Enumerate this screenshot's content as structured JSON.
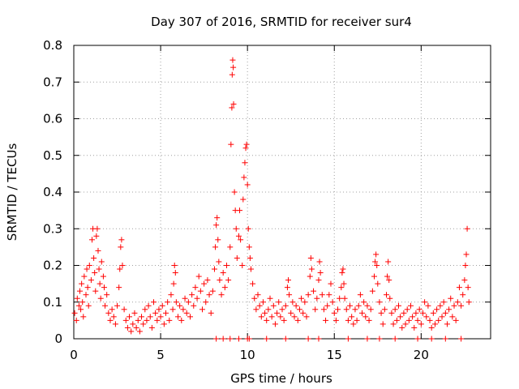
{
  "chart_data": {
    "type": "scatter",
    "title": "Day 307 of 2016, SRMTID for receiver sur4",
    "xlabel": "GPS time / hours",
    "ylabel": "SRMTID / TECUs",
    "xlim": [
      0,
      24
    ],
    "ylim": [
      0,
      0.8
    ],
    "x_ticks": [
      0,
      5,
      10,
      15,
      20
    ],
    "x_tick_labels": [
      "0",
      "5",
      "10",
      "15",
      "20"
    ],
    "y_ticks": [
      0,
      0.1,
      0.2,
      0.3,
      0.4,
      0.5,
      0.6,
      0.7,
      0.8
    ],
    "y_tick_labels": [
      "0",
      "0.1",
      "0.2",
      "0.3",
      "0.4",
      "0.5",
      "0.6",
      "0.7",
      "0.8"
    ],
    "grid": true,
    "marker": "+",
    "series": [
      {
        "name": "sur4",
        "color": "#ff0000",
        "points": [
          [
            0.05,
            0.07
          ],
          [
            0.15,
            0.05
          ],
          [
            0.2,
            0.11
          ],
          [
            0.3,
            0.09
          ],
          [
            0.35,
            0.13
          ],
          [
            0.4,
            0.08
          ],
          [
            0.45,
            0.15
          ],
          [
            0.5,
            0.1
          ],
          [
            0.55,
            0.06
          ],
          [
            0.6,
            0.17
          ],
          [
            0.7,
            0.12
          ],
          [
            0.75,
            0.19
          ],
          [
            0.8,
            0.14
          ],
          [
            0.85,
            0.09
          ],
          [
            0.9,
            0.2
          ],
          [
            1.0,
            0.16
          ],
          [
            1.05,
            0.27
          ],
          [
            1.1,
            0.3
          ],
          [
            1.15,
            0.22
          ],
          [
            1.2,
            0.18
          ],
          [
            1.25,
            0.13
          ],
          [
            1.3,
            0.28
          ],
          [
            1.35,
            0.3
          ],
          [
            1.4,
            0.24
          ],
          [
            1.45,
            0.19
          ],
          [
            1.5,
            0.15
          ],
          [
            1.55,
            0.11
          ],
          [
            1.6,
            0.21
          ],
          [
            1.7,
            0.17
          ],
          [
            1.75,
            0.14
          ],
          [
            1.8,
            0.09
          ],
          [
            1.9,
            0.12
          ],
          [
            2.0,
            0.07
          ],
          [
            2.1,
            0.05
          ],
          [
            2.2,
            0.08
          ],
          [
            2.3,
            0.06
          ],
          [
            2.4,
            0.04
          ],
          [
            2.5,
            0.09
          ],
          [
            2.6,
            0.14
          ],
          [
            2.65,
            0.19
          ],
          [
            2.7,
            0.25
          ],
          [
            2.75,
            0.27
          ],
          [
            2.8,
            0.2
          ],
          [
            2.9,
            0.08
          ],
          [
            3.0,
            0.05
          ],
          [
            3.1,
            0.03
          ],
          [
            3.2,
            0.06
          ],
          [
            3.3,
            0.02
          ],
          [
            3.4,
            0.04
          ],
          [
            3.5,
            0.07
          ],
          [
            3.6,
            0.03
          ],
          [
            3.7,
            0.05
          ],
          [
            3.8,
            0.02
          ],
          [
            3.9,
            0.06
          ],
          [
            4.0,
            0.04
          ],
          [
            4.1,
            0.08
          ],
          [
            4.2,
            0.05
          ],
          [
            4.3,
            0.09
          ],
          [
            4.4,
            0.06
          ],
          [
            4.5,
            0.03
          ],
          [
            4.6,
            0.1
          ],
          [
            4.7,
            0.07
          ],
          [
            4.8,
            0.05
          ],
          [
            4.9,
            0.08
          ],
          [
            5.0,
            0.06
          ],
          [
            5.1,
            0.09
          ],
          [
            5.2,
            0.04
          ],
          [
            5.3,
            0.07
          ],
          [
            5.4,
            0.1
          ],
          [
            5.5,
            0.05
          ],
          [
            5.6,
            0.12
          ],
          [
            5.7,
            0.08
          ],
          [
            5.75,
            0.15
          ],
          [
            5.8,
            0.2
          ],
          [
            5.85,
            0.18
          ],
          [
            5.9,
            0.1
          ],
          [
            6.0,
            0.06
          ],
          [
            6.1,
            0.09
          ],
          [
            6.2,
            0.05
          ],
          [
            6.3,
            0.08
          ],
          [
            6.4,
            0.11
          ],
          [
            6.5,
            0.07
          ],
          [
            6.6,
            0.1
          ],
          [
            6.7,
            0.06
          ],
          [
            6.8,
            0.12
          ],
          [
            6.9,
            0.09
          ],
          [
            7.0,
            0.14
          ],
          [
            7.1,
            0.11
          ],
          [
            7.2,
            0.17
          ],
          [
            7.3,
            0.13
          ],
          [
            7.4,
            0.08
          ],
          [
            7.5,
            0.15
          ],
          [
            7.6,
            0.1
          ],
          [
            7.7,
            0.16
          ],
          [
            7.8,
            0.12
          ],
          [
            7.9,
            0.07
          ],
          [
            8.0,
            0.13
          ],
          [
            8.1,
            0.19
          ],
          [
            8.15,
            0.25
          ],
          [
            8.2,
            0.31
          ],
          [
            8.25,
            0.33
          ],
          [
            8.3,
            0.27
          ],
          [
            8.35,
            0.21
          ],
          [
            8.4,
            0.16
          ],
          [
            8.5,
            0.12
          ],
          [
            8.6,
            0.18
          ],
          [
            8.7,
            0.14
          ],
          [
            8.8,
            0.2
          ],
          [
            8.9,
            0.16
          ],
          [
            9.0,
            0.25
          ],
          [
            9.05,
            0.53
          ],
          [
            9.1,
            0.63
          ],
          [
            9.12,
            0.72
          ],
          [
            9.15,
            0.76
          ],
          [
            9.18,
            0.74
          ],
          [
            9.2,
            0.64
          ],
          [
            9.25,
            0.4
          ],
          [
            9.3,
            0.35
          ],
          [
            9.35,
            0.3
          ],
          [
            9.4,
            0.22
          ],
          [
            9.5,
            0.28
          ],
          [
            9.55,
            0.35
          ],
          [
            9.6,
            0.27
          ],
          [
            9.7,
            0.2
          ],
          [
            9.75,
            0.38
          ],
          [
            9.8,
            0.44
          ],
          [
            9.85,
            0.48
          ],
          [
            9.9,
            0.52
          ],
          [
            9.95,
            0.53
          ],
          [
            10.0,
            0.42
          ],
          [
            10.05,
            0.3
          ],
          [
            10.1,
            0.25
          ],
          [
            10.15,
            0.22
          ],
          [
            10.2,
            0.19
          ],
          [
            10.3,
            0.15
          ],
          [
            10.4,
            0.11
          ],
          [
            10.5,
            0.08
          ],
          [
            10.6,
            0.12
          ],
          [
            10.7,
            0.09
          ],
          [
            10.8,
            0.06
          ],
          [
            10.9,
            0.1
          ],
          [
            11.0,
            0.07
          ],
          [
            11.1,
            0.05
          ],
          [
            11.2,
            0.08
          ],
          [
            11.3,
            0.11
          ],
          [
            11.4,
            0.06
          ],
          [
            11.5,
            0.09
          ],
          [
            11.6,
            0.04
          ],
          [
            11.7,
            0.07
          ],
          [
            11.8,
            0.1
          ],
          [
            11.9,
            0.06
          ],
          [
            12.0,
            0.08
          ],
          [
            12.1,
            0.05
          ],
          [
            12.2,
            0.09
          ],
          [
            12.3,
            0.14
          ],
          [
            12.35,
            0.16
          ],
          [
            12.4,
            0.12
          ],
          [
            12.5,
            0.07
          ],
          [
            12.6,
            0.1
          ],
          [
            12.7,
            0.06
          ],
          [
            12.8,
            0.09
          ],
          [
            12.9,
            0.05
          ],
          [
            13.0,
            0.08
          ],
          [
            13.1,
            0.11
          ],
          [
            13.2,
            0.07
          ],
          [
            13.3,
            0.1
          ],
          [
            13.4,
            0.06
          ],
          [
            13.5,
            0.12
          ],
          [
            13.6,
            0.17
          ],
          [
            13.65,
            0.22
          ],
          [
            13.7,
            0.19
          ],
          [
            13.8,
            0.13
          ],
          [
            13.9,
            0.08
          ],
          [
            14.0,
            0.11
          ],
          [
            14.1,
            0.16
          ],
          [
            14.15,
            0.21
          ],
          [
            14.2,
            0.18
          ],
          [
            14.3,
            0.12
          ],
          [
            14.4,
            0.08
          ],
          [
            14.5,
            0.05
          ],
          [
            14.6,
            0.09
          ],
          [
            14.7,
            0.12
          ],
          [
            14.8,
            0.15
          ],
          [
            14.9,
            0.1
          ],
          [
            15.0,
            0.07
          ],
          [
            15.1,
            0.05
          ],
          [
            15.2,
            0.08
          ],
          [
            15.3,
            0.11
          ],
          [
            15.4,
            0.14
          ],
          [
            15.45,
            0.18
          ],
          [
            15.5,
            0.19
          ],
          [
            15.55,
            0.15
          ],
          [
            15.6,
            0.11
          ],
          [
            15.7,
            0.08
          ],
          [
            15.8,
            0.05
          ],
          [
            15.9,
            0.09
          ],
          [
            16.0,
            0.06
          ],
          [
            16.1,
            0.04
          ],
          [
            16.2,
            0.08
          ],
          [
            16.3,
            0.05
          ],
          [
            16.4,
            0.09
          ],
          [
            16.5,
            0.12
          ],
          [
            16.6,
            0.07
          ],
          [
            16.7,
            0.1
          ],
          [
            16.8,
            0.06
          ],
          [
            16.9,
            0.09
          ],
          [
            17.0,
            0.05
          ],
          [
            17.1,
            0.08
          ],
          [
            17.2,
            0.13
          ],
          [
            17.3,
            0.17
          ],
          [
            17.35,
            0.21
          ],
          [
            17.4,
            0.23
          ],
          [
            17.45,
            0.2
          ],
          [
            17.5,
            0.15
          ],
          [
            17.6,
            0.1
          ],
          [
            17.7,
            0.07
          ],
          [
            17.8,
            0.04
          ],
          [
            17.9,
            0.08
          ],
          [
            18.0,
            0.12
          ],
          [
            18.05,
            0.17
          ],
          [
            18.1,
            0.21
          ],
          [
            18.15,
            0.16
          ],
          [
            18.2,
            0.11
          ],
          [
            18.3,
            0.07
          ],
          [
            18.4,
            0.04
          ],
          [
            18.5,
            0.08
          ],
          [
            18.6,
            0.05
          ],
          [
            18.7,
            0.09
          ],
          [
            18.8,
            0.06
          ],
          [
            18.9,
            0.03
          ],
          [
            19.0,
            0.07
          ],
          [
            19.1,
            0.04
          ],
          [
            19.2,
            0.08
          ],
          [
            19.3,
            0.05
          ],
          [
            19.4,
            0.09
          ],
          [
            19.5,
            0.06
          ],
          [
            19.6,
            0.03
          ],
          [
            19.7,
            0.07
          ],
          [
            19.8,
            0.05
          ],
          [
            19.9,
            0.08
          ],
          [
            20.0,
            0.04
          ],
          [
            20.1,
            0.07
          ],
          [
            20.2,
            0.1
          ],
          [
            20.3,
            0.06
          ],
          [
            20.4,
            0.09
          ],
          [
            20.5,
            0.05
          ],
          [
            20.6,
            0.03
          ],
          [
            20.7,
            0.07
          ],
          [
            20.8,
            0.04
          ],
          [
            20.9,
            0.08
          ],
          [
            21.0,
            0.05
          ],
          [
            21.1,
            0.09
          ],
          [
            21.2,
            0.06
          ],
          [
            21.3,
            0.1
          ],
          [
            21.4,
            0.07
          ],
          [
            21.5,
            0.04
          ],
          [
            21.6,
            0.08
          ],
          [
            21.7,
            0.11
          ],
          [
            21.8,
            0.06
          ],
          [
            21.9,
            0.09
          ],
          [
            22.0,
            0.05
          ],
          [
            22.1,
            0.1
          ],
          [
            22.2,
            0.14
          ],
          [
            22.3,
            0.09
          ],
          [
            22.4,
            0.12
          ],
          [
            22.5,
            0.16
          ],
          [
            22.55,
            0.2
          ],
          [
            22.6,
            0.23
          ],
          [
            22.65,
            0.3
          ],
          [
            22.7,
            0.14
          ],
          [
            22.75,
            0.1
          ]
        ],
        "zero_points": [
          8.2,
          8.6,
          9.0,
          9.5,
          10.0,
          10.1,
          11.1,
          12.2,
          13.5,
          14.1,
          15.8,
          16.9,
          17.6,
          18.5,
          19.8,
          20.6,
          21.4,
          22.3
        ]
      }
    ]
  }
}
